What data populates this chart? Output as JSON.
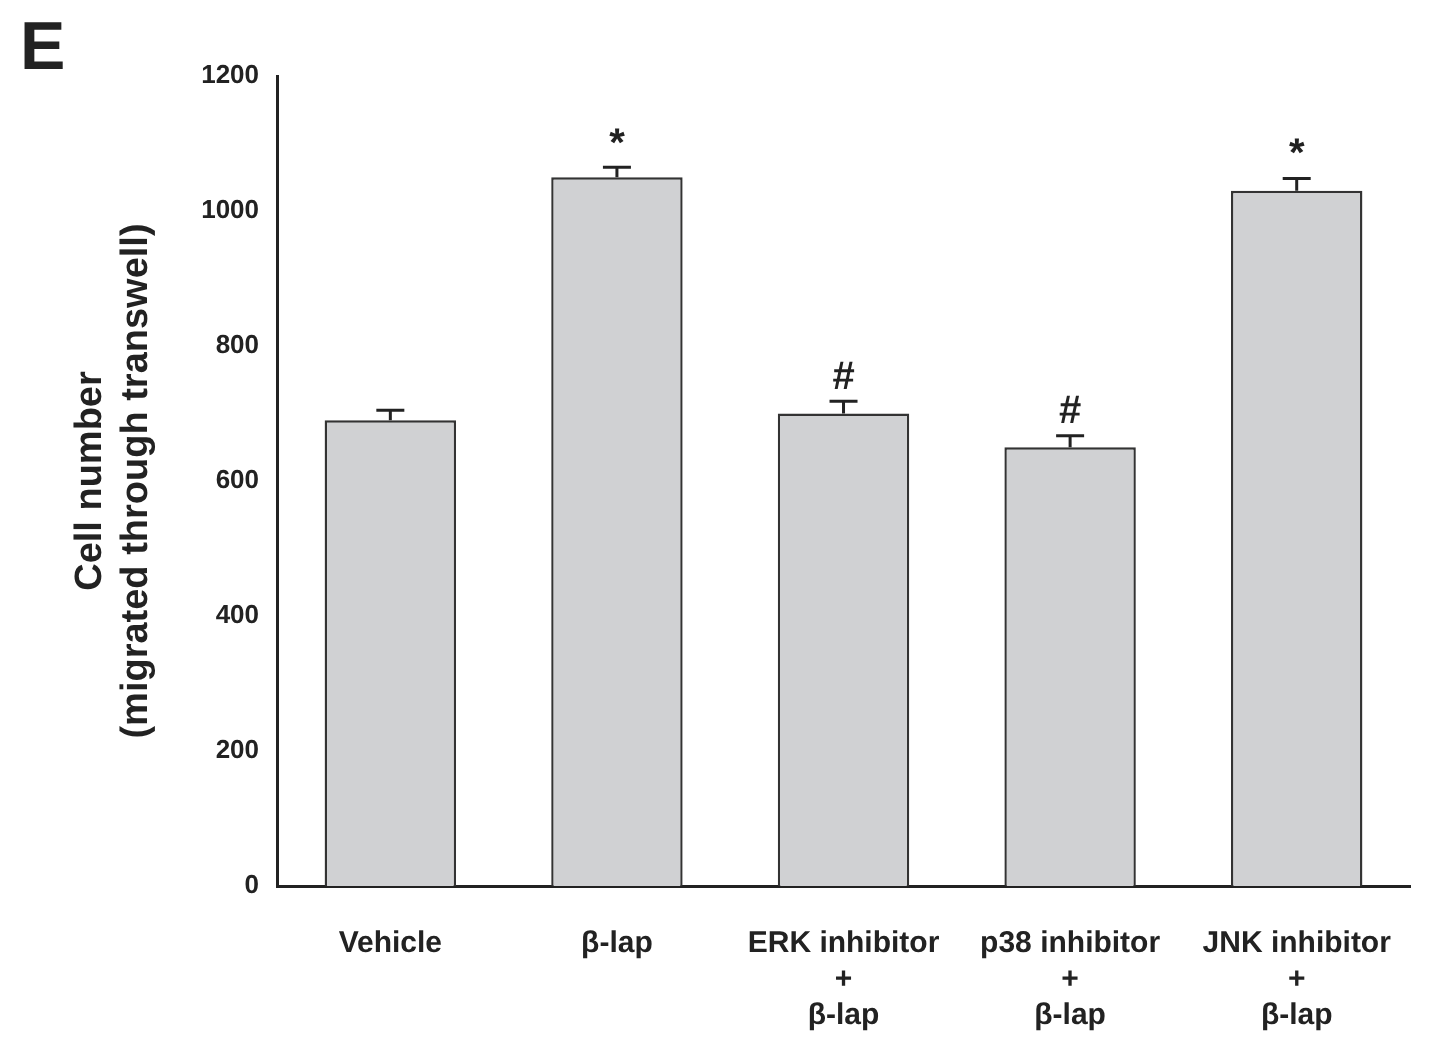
{
  "chart_data": {
    "type": "bar",
    "categories": [
      "Vehicle",
      "β-lap",
      "ERK inhibitor\n+\nβ-lap",
      "p38 inhibitor\n+\nβ-lap",
      "JNK inhibitor\n+\nβ-lap"
    ],
    "values": [
      690,
      1050,
      700,
      650,
      1030
    ],
    "errors": [
      15,
      15,
      18,
      17,
      18
    ],
    "color": "#d0d1d3",
    "ylabel": "Cell number\n(migrated through transwell)",
    "ylim": [
      0,
      1200
    ],
    "yticks": [
      0,
      200,
      400,
      600,
      800,
      1000,
      1200
    ],
    "grid": false,
    "legend": false,
    "annotations": [
      "E",
      {
        "text": "*",
        "x": "β-lap",
        "y": 1065
      },
      {
        "text": "#",
        "x": "ERK inhibitor\n+\nβ-lap",
        "y": 720
      },
      {
        "text": "#",
        "x": "p38 inhibitor\n+\nβ-lap",
        "y": 670
      },
      {
        "text": "*",
        "x": "JNK inhibitor\n+\nβ-lap",
        "y": 1050
      }
    ]
  }
}
